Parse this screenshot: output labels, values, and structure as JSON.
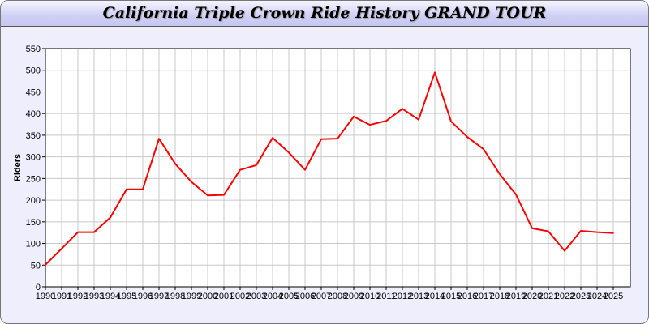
{
  "chart_data": {
    "type": "line",
    "title": "California Triple Crown Ride History GRAND TOUR",
    "xlabel": "",
    "ylabel": "Riders",
    "ylim": [
      0,
      550
    ],
    "yticks": [
      0,
      50,
      100,
      150,
      200,
      250,
      300,
      350,
      400,
      450,
      500,
      550
    ],
    "grid": true,
    "line_color": "#ff0000",
    "categories": [
      "1990",
      "1991",
      "1992",
      "1993",
      "1994",
      "1995",
      "1996",
      "1997",
      "1998",
      "1999",
      "2000",
      "2001",
      "2002",
      "2003",
      "2004",
      "2005",
      "2006",
      "2007",
      "2008",
      "2009",
      "2010",
      "2011",
      "2012",
      "2013",
      "2014",
      "2015",
      "2016",
      "2017",
      "2018",
      "2019",
      "2020",
      "2021",
      "2022",
      "2023",
      "2024",
      "2025"
    ],
    "values": [
      51,
      88,
      126,
      126,
      160,
      225,
      225,
      342,
      284,
      242,
      211,
      212,
      270,
      281,
      344,
      310,
      270,
      341,
      342,
      393,
      374,
      383,
      411,
      386,
      495,
      382,
      346,
      318,
      260,
      213,
      135,
      128,
      83,
      129,
      126,
      124
    ]
  }
}
